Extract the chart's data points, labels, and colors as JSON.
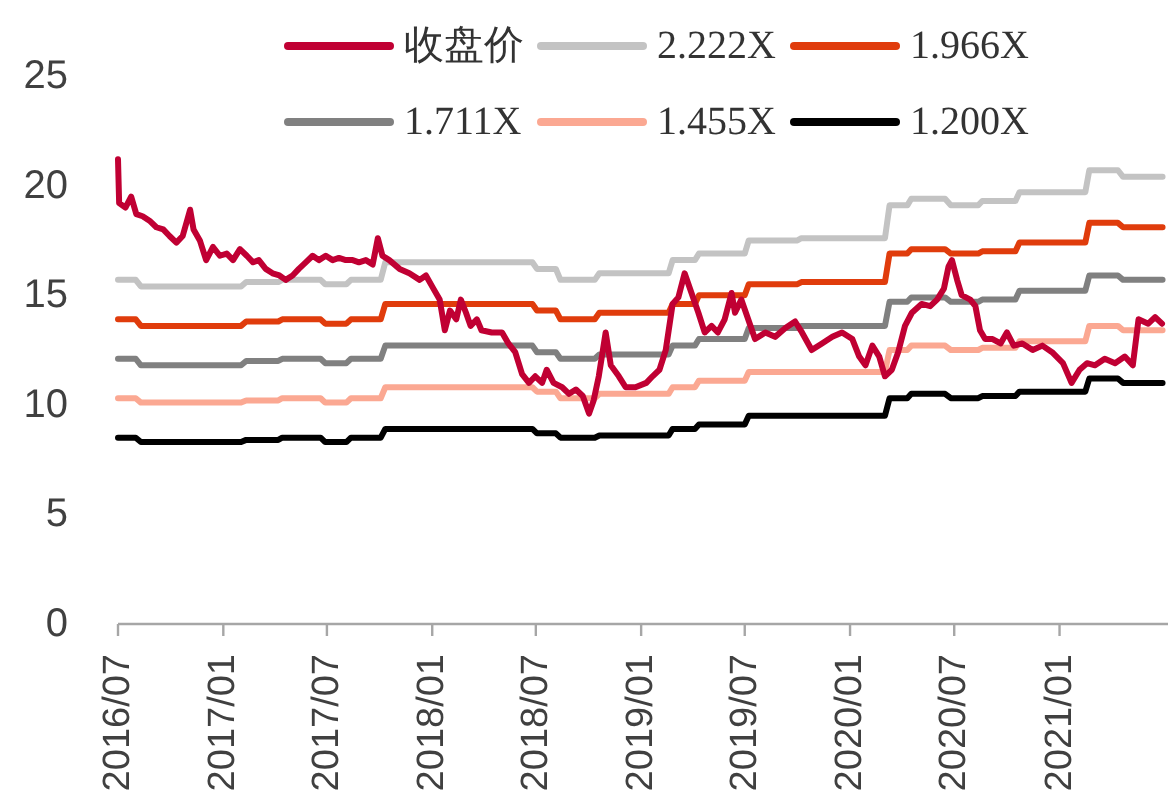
{
  "chart_data": {
    "type": "line",
    "xlim": [
      "2016-07-01",
      "2021-07-06"
    ],
    "xticks": [
      {
        "value": "2016-07-01",
        "label": "2016/07"
      },
      {
        "value": "2017-01-01",
        "label": "2017/01"
      },
      {
        "value": "2017-07-01",
        "label": "2017/07"
      },
      {
        "value": "2018-01-01",
        "label": "2018/01"
      },
      {
        "value": "2018-07-01",
        "label": "2018/07"
      },
      {
        "value": "2019-01-01",
        "label": "2019/01"
      },
      {
        "value": "2019-07-01",
        "label": "2019/07"
      },
      {
        "value": "2020-01-01",
        "label": "2020/01"
      },
      {
        "value": "2020-07-01",
        "label": "2020/07"
      },
      {
        "value": "2021-01-01",
        "label": "2021/01"
      }
    ],
    "ylim": [
      0,
      25
    ],
    "yticks": [
      0,
      5,
      10,
      15,
      20,
      25
    ],
    "legend": "top",
    "x": [
      "2016-07-01",
      "2016-08-01",
      "2016-08-10",
      "2017-02-01",
      "2017-02-10",
      "2017-04-07",
      "2017-04-14",
      "2017-06-20",
      "2017-06-28",
      "2017-08-04",
      "2017-08-12",
      "2017-10-03",
      "2017-10-11",
      "2018-06-25",
      "2018-07-03",
      "2018-08-05",
      "2018-08-13",
      "2018-10-12",
      "2018-10-20",
      "2019-02-18",
      "2019-02-25",
      "2019-04-05",
      "2019-04-12",
      "2019-07-01",
      "2019-07-08",
      "2019-10-01",
      "2019-10-08",
      "2020-03-02",
      "2020-03-10",
      "2020-04-10",
      "2020-04-17",
      "2020-06-15",
      "2020-06-25",
      "2020-08-12",
      "2020-08-19",
      "2020-10-16",
      "2020-10-23",
      "2021-02-15",
      "2021-02-22",
      "2021-04-13",
      "2021-04-22",
      "2021-06-30"
    ],
    "series": [
      {
        "name": "收盘价",
        "color": "#c00033",
        "x": [
          "2016-07-01",
          "2016-07-03",
          "2016-07-14",
          "2016-07-24",
          "2016-08-02",
          "2016-08-13",
          "2016-08-25",
          "2016-09-06",
          "2016-09-18",
          "2016-09-29",
          "2016-10-11",
          "2016-10-22",
          "2016-11-04",
          "2016-11-10",
          "2016-11-21",
          "2016-12-02",
          "2016-12-14",
          "2016-12-26",
          "2017-01-07",
          "2017-01-18",
          "2017-01-30",
          "2017-02-11",
          "2017-02-22",
          "2017-03-04",
          "2017-03-16",
          "2017-03-28",
          "2017-04-09",
          "2017-04-20",
          "2017-05-02",
          "2017-05-13",
          "2017-05-25",
          "2017-06-06",
          "2017-06-17",
          "2017-06-29",
          "2017-07-11",
          "2017-07-22",
          "2017-08-03",
          "2017-08-15",
          "2017-08-26",
          "2017-09-07",
          "2017-09-19",
          "2017-09-28",
          "2017-10-06",
          "2017-10-18",
          "2017-11-05",
          "2017-11-22",
          "2017-12-10",
          "2017-12-21",
          "2018-01-03",
          "2018-01-14",
          "2018-01-23",
          "2018-02-01",
          "2018-02-12",
          "2018-02-20",
          "2018-03-01",
          "2018-03-09",
          "2018-03-20",
          "2018-03-28",
          "2018-04-15",
          "2018-05-03",
          "2018-05-14",
          "2018-05-26",
          "2018-06-07",
          "2018-06-19",
          "2018-06-30",
          "2018-07-12",
          "2018-07-20",
          "2018-08-01",
          "2018-08-16",
          "2018-08-28",
          "2018-09-09",
          "2018-09-21",
          "2018-10-02",
          "2018-10-10",
          "2018-10-19",
          "2018-10-31",
          "2018-11-09",
          "2018-11-23",
          "2018-12-05",
          "2018-12-22",
          "2019-01-10",
          "2019-01-21",
          "2019-02-02",
          "2019-02-13",
          "2019-02-25",
          "2019-03-07",
          "2019-03-18",
          "2019-03-30",
          "2019-04-11",
          "2019-04-22",
          "2019-05-04",
          "2019-05-15",
          "2019-05-27",
          "2019-06-08",
          "2019-06-14",
          "2019-06-25",
          "2019-07-07",
          "2019-07-19",
          "2019-08-06",
          "2019-08-23",
          "2019-09-10",
          "2019-09-27",
          "2019-10-09",
          "2019-10-26",
          "2019-11-13",
          "2019-12-01",
          "2019-12-18",
          "2020-01-05",
          "2020-01-17",
          "2020-01-28",
          "2020-02-09",
          "2020-02-21",
          "2020-03-02",
          "2020-03-14",
          "2020-03-25",
          "2020-04-06",
          "2020-04-18",
          "2020-05-05",
          "2020-05-20",
          "2020-06-01",
          "2020-06-13",
          "2020-06-21",
          "2020-06-27",
          "2020-07-06",
          "2020-07-14",
          "2020-07-29",
          "2020-08-07",
          "2020-08-15",
          "2020-08-24",
          "2020-09-06",
          "2020-09-20",
          "2020-10-01",
          "2020-10-13",
          "2020-10-28",
          "2020-11-15",
          "2020-12-02",
          "2020-12-19",
          "2021-01-07",
          "2021-01-22",
          "2021-02-05",
          "2021-02-18",
          "2021-03-04",
          "2021-03-21",
          "2021-04-08",
          "2021-04-25",
          "2021-05-09",
          "2021-05-19",
          "2021-06-05",
          "2021-06-17",
          "2021-06-29"
        ],
        "values": [
          21.2,
          19.2,
          19.0,
          19.5,
          18.7,
          18.6,
          18.4,
          18.1,
          18.0,
          17.7,
          17.4,
          17.7,
          18.9,
          18.0,
          17.5,
          16.6,
          17.2,
          16.8,
          16.9,
          16.6,
          17.1,
          16.8,
          16.5,
          16.6,
          16.2,
          16.0,
          15.9,
          15.7,
          15.9,
          16.2,
          16.5,
          16.8,
          16.6,
          16.8,
          16.6,
          16.7,
          16.6,
          16.6,
          16.5,
          16.6,
          16.4,
          17.6,
          16.8,
          16.6,
          16.2,
          16.0,
          15.7,
          15.9,
          15.3,
          14.8,
          13.4,
          14.3,
          13.9,
          14.8,
          14.2,
          13.6,
          13.9,
          13.4,
          13.3,
          13.3,
          12.8,
          12.4,
          11.4,
          11.0,
          11.3,
          11.0,
          11.6,
          11.0,
          10.8,
          10.5,
          10.7,
          10.4,
          9.6,
          10.2,
          11.3,
          13.3,
          11.8,
          11.3,
          10.8,
          10.8,
          11.0,
          11.3,
          11.6,
          12.5,
          14.6,
          14.9,
          16.0,
          15.1,
          14.2,
          13.3,
          13.6,
          13.3,
          13.9,
          15.1,
          14.2,
          14.8,
          13.9,
          13.0,
          13.3,
          13.1,
          13.5,
          13.8,
          13.3,
          12.5,
          12.8,
          13.1,
          13.3,
          13.0,
          12.2,
          11.8,
          12.7,
          12.2,
          11.3,
          11.6,
          12.4,
          13.6,
          14.2,
          14.6,
          14.5,
          14.8,
          15.3,
          16.3,
          16.6,
          15.7,
          15.0,
          14.8,
          14.5,
          13.4,
          13.0,
          13.0,
          12.8,
          13.3,
          12.7,
          12.8,
          12.5,
          12.7,
          12.4,
          11.9,
          11.0,
          11.6,
          11.9,
          11.8,
          12.1,
          11.9,
          12.2,
          11.8,
          13.9,
          13.7,
          14.0,
          13.7
        ]
      },
      {
        "name": "2.222X",
        "color": "#c3c3c3",
        "values": [
          15.7,
          15.7,
          15.4,
          15.4,
          15.6,
          15.6,
          15.7,
          15.7,
          15.5,
          15.5,
          15.7,
          15.7,
          16.5,
          16.5,
          16.2,
          16.2,
          15.7,
          15.7,
          16.0,
          16.0,
          16.6,
          16.6,
          16.9,
          16.9,
          17.5,
          17.5,
          17.6,
          17.6,
          19.1,
          19.1,
          19.4,
          19.4,
          19.1,
          19.1,
          19.3,
          19.3,
          19.7,
          19.7,
          20.7,
          20.7,
          20.4,
          20.4
        ]
      },
      {
        "name": "1.966X",
        "color": "#e03c0c",
        "values": [
          13.9,
          13.9,
          13.6,
          13.6,
          13.8,
          13.8,
          13.9,
          13.9,
          13.7,
          13.7,
          13.9,
          13.9,
          14.6,
          14.6,
          14.3,
          14.3,
          13.9,
          13.9,
          14.2,
          14.2,
          14.6,
          14.6,
          15.0,
          15.0,
          15.5,
          15.5,
          15.6,
          15.6,
          16.9,
          16.9,
          17.1,
          17.1,
          16.9,
          16.9,
          17.0,
          17.0,
          17.4,
          17.4,
          18.3,
          18.3,
          18.1,
          18.1
        ]
      },
      {
        "name": "1.711X",
        "color": "#808080",
        "values": [
          12.1,
          12.1,
          11.8,
          11.8,
          12.0,
          12.0,
          12.1,
          12.1,
          11.9,
          11.9,
          12.1,
          12.1,
          12.7,
          12.7,
          12.4,
          12.4,
          12.1,
          12.1,
          12.3,
          12.3,
          12.7,
          12.7,
          13.0,
          13.0,
          13.5,
          13.5,
          13.6,
          13.6,
          14.7,
          14.7,
          14.9,
          14.9,
          14.7,
          14.7,
          14.8,
          14.8,
          15.2,
          15.2,
          15.9,
          15.9,
          15.7,
          15.7
        ]
      },
      {
        "name": "1.455X",
        "color": "#fba892",
        "values": [
          10.3,
          10.3,
          10.1,
          10.1,
          10.2,
          10.2,
          10.3,
          10.3,
          10.1,
          10.1,
          10.3,
          10.3,
          10.8,
          10.8,
          10.6,
          10.6,
          10.3,
          10.3,
          10.5,
          10.5,
          10.8,
          10.8,
          11.1,
          11.1,
          11.5,
          11.5,
          11.5,
          11.5,
          12.5,
          12.5,
          12.7,
          12.7,
          12.5,
          12.5,
          12.6,
          12.6,
          12.9,
          12.9,
          13.6,
          13.6,
          13.4,
          13.4
        ]
      },
      {
        "name": "1.200X",
        "color": "#000000",
        "values": [
          8.5,
          8.5,
          8.3,
          8.3,
          8.4,
          8.4,
          8.5,
          8.5,
          8.3,
          8.3,
          8.5,
          8.5,
          8.9,
          8.9,
          8.7,
          8.7,
          8.5,
          8.5,
          8.6,
          8.6,
          8.9,
          8.9,
          9.1,
          9.1,
          9.5,
          9.5,
          9.5,
          9.5,
          10.3,
          10.3,
          10.5,
          10.5,
          10.3,
          10.3,
          10.4,
          10.4,
          10.6,
          10.6,
          11.2,
          11.2,
          11.0,
          11.0
        ]
      }
    ]
  }
}
